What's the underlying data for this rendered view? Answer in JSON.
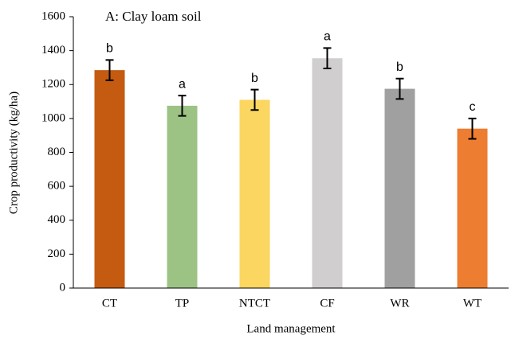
{
  "chart_data": {
    "type": "bar",
    "title": "A: Clay loam soil",
    "x_label": "Land management",
    "y_label": "Crop productivity (kg/ha)",
    "categories": [
      "CT",
      "TP",
      "NTCT",
      "CF",
      "WR",
      "WT"
    ],
    "values": [
      1285,
      1075,
      1110,
      1355,
      1175,
      940
    ],
    "errors": [
      60,
      60,
      60,
      60,
      60,
      60
    ],
    "letters": [
      "b",
      "a",
      "b",
      "a",
      "b",
      "c"
    ],
    "colors": [
      "#c55a11",
      "#9dc384",
      "#fbd660",
      "#d0cece",
      "#a0a0a0",
      "#ed7d31"
    ],
    "ylim": [
      0,
      1600
    ],
    "yticks": [
      0,
      200,
      400,
      600,
      800,
      1000,
      1200,
      1400,
      1600
    ],
    "grid": false
  }
}
